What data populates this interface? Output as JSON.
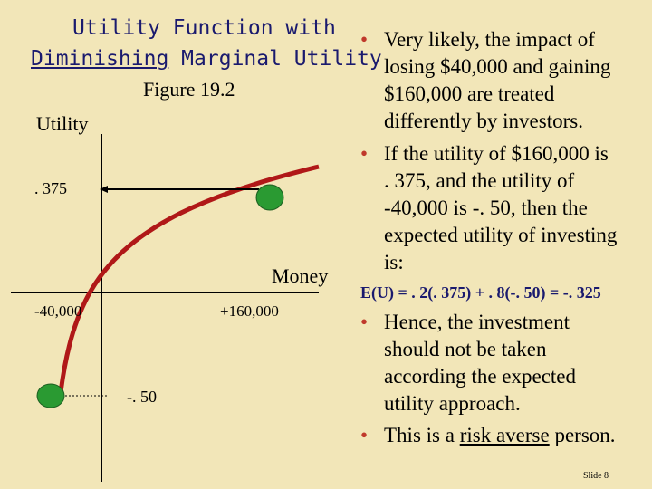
{
  "title": {
    "line1": "Utility Function with",
    "line2_underlined": "Diminishing",
    "line2_rest": " Marginal Utility"
  },
  "figure_label": "Figure 19.2",
  "diagram": {
    "y_axis_label": "Utility",
    "x_axis_label": "Money",
    "tick_pos": ". 375",
    "tick_neg": "-. 50",
    "x_neg": "-40,000",
    "x_pos": "+160,000",
    "colors": {
      "curve": "#b01818",
      "marker": "#2a9a32",
      "axis": "#000000"
    }
  },
  "bullets_top": [
    {
      "lines": [
        "Very likely, the impact of",
        "losing $40,000 and gaining",
        "$160,000 are treated",
        "differently by investors."
      ]
    },
    {
      "lines": [
        "If the utility of $160,000 is",
        ". 375, and the utility of",
        "-40,000 is -. 50, then the",
        "expected utility of investing",
        "is:"
      ]
    }
  ],
  "equation": "E(U) = . 2(. 375) + . 8(-. 50) = -. 325",
  "bullets_bottom": [
    {
      "lines": [
        "Hence, the investment",
        "should not be taken",
        "according the expected",
        "utility approach."
      ]
    },
    {
      "pre": "This is a ",
      "underlined": "risk averse",
      "post": " person."
    }
  ],
  "slide_number": "Slide 8",
  "colors": {
    "background": "#f2e6b8",
    "title": "#1a1a6e",
    "bullet": "#c0392b"
  }
}
